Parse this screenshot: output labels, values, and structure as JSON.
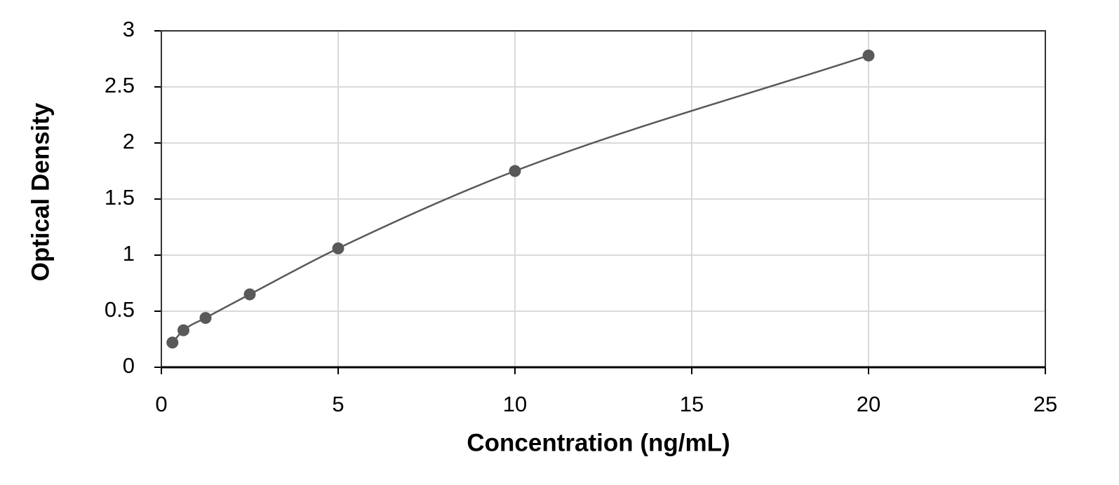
{
  "chart_data": {
    "type": "scatter",
    "x_label": "Concentration (ng/mL)",
    "y_label": "Optical Density",
    "x": [
      0.313,
      0.625,
      1.25,
      2.5,
      5,
      10,
      20
    ],
    "values": [
      0.22,
      0.33,
      0.44,
      0.65,
      1.06,
      1.75,
      2.78
    ],
    "color": "#595959",
    "line": true,
    "xlim": [
      0,
      25
    ],
    "xticks": [
      0,
      5,
      10,
      15,
      20,
      25
    ],
    "ylim": [
      0,
      3
    ],
    "yticks": [
      0,
      {
        "value": 0.5,
        "label": "0.5"
      },
      1,
      {
        "value": 1.5,
        "label": "1.5"
      },
      2,
      {
        "value": 2.5,
        "label": "2.5"
      },
      3
    ],
    "grid": true
  }
}
